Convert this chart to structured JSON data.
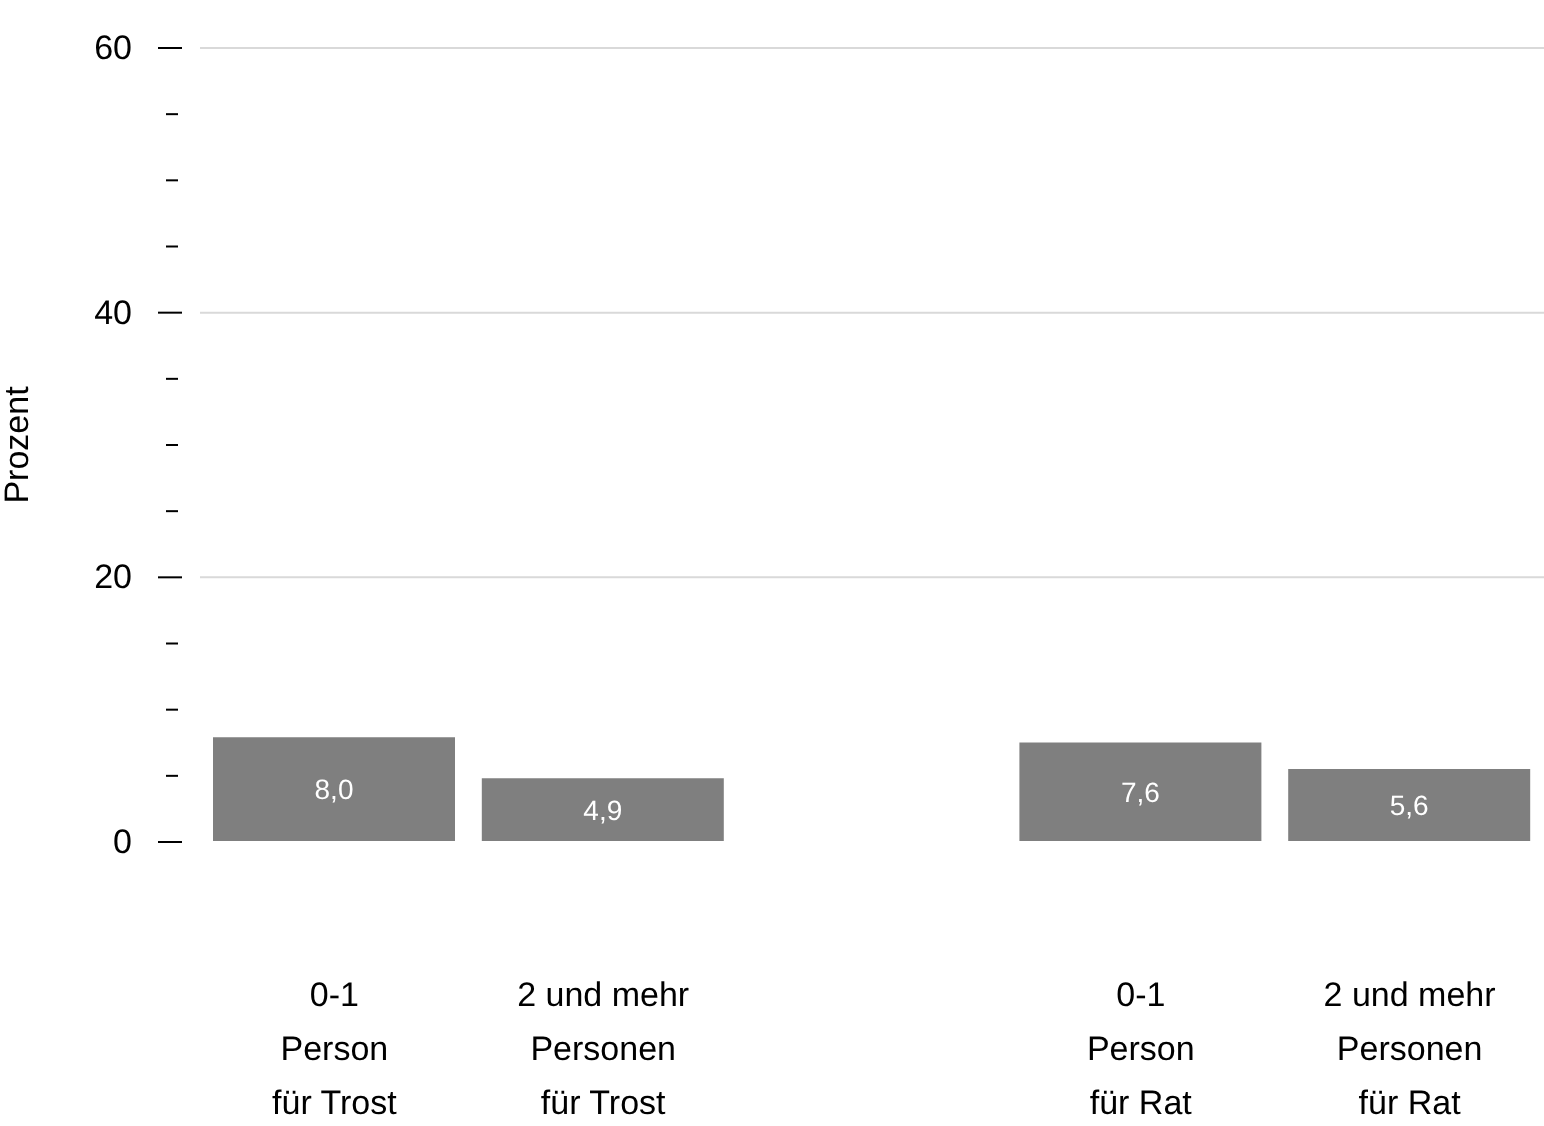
{
  "chart_data": {
    "type": "bar",
    "ylabel": "Prozent",
    "categories": [
      "0-1\nPerson\nfür Trost",
      "2 und mehr\nPersonen\nfür Trost",
      null,
      "0-1\nPerson\nfür Rat",
      "2 und mehr\nPersonen\nfür Rat"
    ],
    "values": [
      8.0,
      4.9,
      null,
      7.6,
      5.6
    ],
    "value_labels": [
      "8,0",
      "4,9",
      null,
      "7,6",
      "5,6"
    ],
    "color": "#7f7f7f",
    "ylim": [
      0,
      60
    ],
    "yticks": [
      0,
      {
        "value": 5,
        "label": null
      },
      {
        "value": 10,
        "label": null
      },
      {
        "value": 15,
        "label": null
      },
      20,
      {
        "value": 25,
        "label": null
      },
      {
        "value": 30,
        "label": null
      },
      {
        "value": 35,
        "label": null
      },
      40,
      {
        "value": 45,
        "label": null
      },
      {
        "value": 50,
        "label": null
      },
      {
        "value": 55,
        "label": null
      },
      60
    ],
    "grid": "y"
  }
}
